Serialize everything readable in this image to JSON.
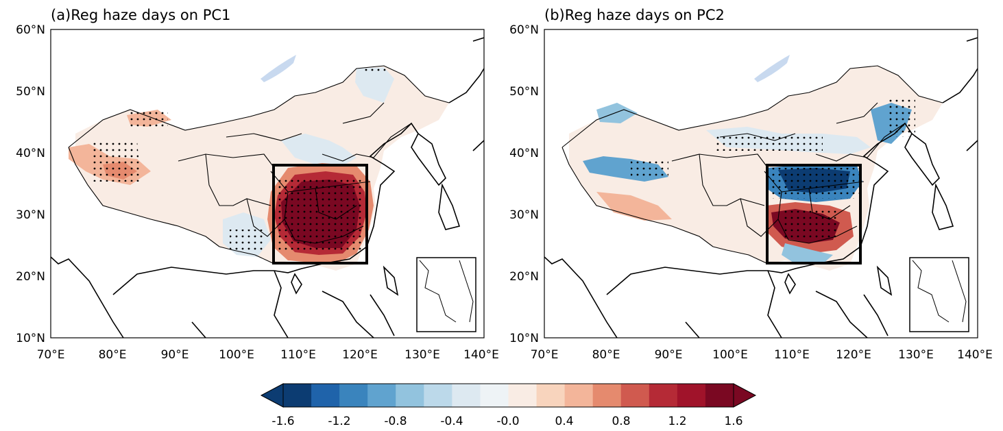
{
  "panels": [
    {
      "id": "a",
      "title": "(a)Reg haze days on PC1",
      "lat_ticks": [
        "10°N",
        "20°N",
        "30°N",
        "40°N",
        "50°N",
        "60°N"
      ],
      "lon_ticks": [
        "70°E",
        "80°E",
        "90°E",
        "100°E",
        "110°E",
        "120°E",
        "130°E",
        "140°E"
      ],
      "extent": {
        "lon": [
          70,
          140
        ],
        "lat": [
          10,
          60
        ]
      },
      "region_box": {
        "lon": [
          106,
          121
        ],
        "lat": [
          22,
          38
        ]
      }
    },
    {
      "id": "b",
      "title": "(b)Reg haze days on PC2",
      "lat_ticks": [
        "10°N",
        "20°N",
        "30°N",
        "40°N",
        "50°N",
        "60°N"
      ],
      "lon_ticks": [
        "70°E",
        "80°E",
        "90°E",
        "100°E",
        "110°E",
        "120°E",
        "130°E",
        "140°E"
      ],
      "extent": {
        "lon": [
          70,
          140
        ],
        "lat": [
          10,
          60
        ]
      },
      "region_box": {
        "lon": [
          106,
          121
        ],
        "lat": [
          22,
          38
        ]
      }
    }
  ],
  "colorbar": {
    "labels": [
      "-1.6",
      "-1.2",
      "-0.8",
      "-0.4",
      "-0.0",
      "0.4",
      "0.8",
      "1.2",
      "1.6"
    ],
    "colors": [
      "#0c3c72",
      "#1f63aa",
      "#3a84bd",
      "#60a3cf",
      "#92c3de",
      "#bcd9ea",
      "#dde9f1",
      "#eef3f6",
      "#f9ece4",
      "#f8d4bd",
      "#f3b59a",
      "#e58a6e",
      "#d05a4f",
      "#b52a36",
      "#a0132a",
      "#7a0822"
    ],
    "extend": "both"
  }
}
